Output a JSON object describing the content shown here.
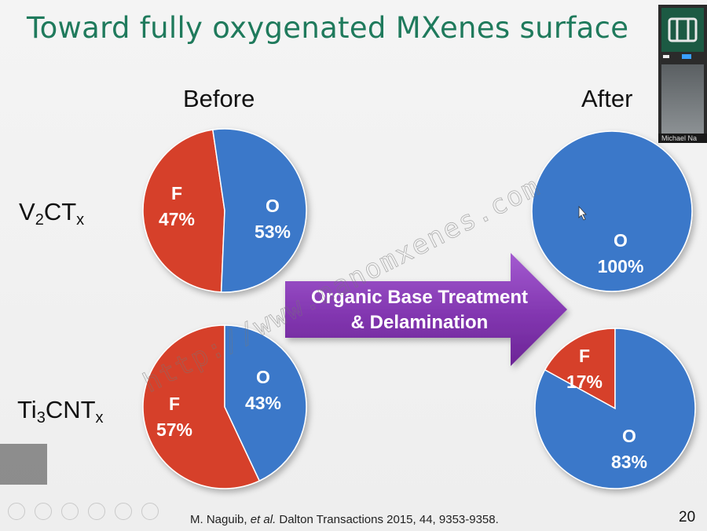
{
  "title": "Toward fully oxygenated MXenes surface",
  "columns": {
    "before": "Before",
    "after": "After"
  },
  "rows": [
    {
      "base": "V",
      "sub1": "2",
      "mid": "CT",
      "sub2": "x"
    },
    {
      "base": "Ti",
      "sub1": "3",
      "mid": "CNT",
      "sub2": "x"
    }
  ],
  "arrow": {
    "line1": "Organic Base Treatment",
    "line2": "& Delamination"
  },
  "citation": {
    "author": "M. Naguib,",
    "etal": "et al.",
    "rest": "Dalton Transactions 2015, 44, 9353-9358."
  },
  "page_number": "20",
  "watermark": "http://www.nanomxenes.com",
  "video": {
    "name": "Michael Na"
  },
  "colors": {
    "F": "#d6402b",
    "O": "#3b78c9",
    "arrow": "#8a3fb3",
    "title": "#1f7a5c"
  },
  "chart_data": [
    {
      "type": "pie",
      "row": "V2CTx",
      "state": "Before",
      "slices": [
        {
          "label": "F",
          "value": 47,
          "text": "47%"
        },
        {
          "label": "O",
          "value": 53,
          "text": "53%"
        }
      ]
    },
    {
      "type": "pie",
      "row": "V2CTx",
      "state": "After",
      "slices": [
        {
          "label": "O",
          "value": 100,
          "text": "100%"
        }
      ]
    },
    {
      "type": "pie",
      "row": "Ti3CNTx",
      "state": "Before",
      "slices": [
        {
          "label": "F",
          "value": 57,
          "text": "57%"
        },
        {
          "label": "O",
          "value": 43,
          "text": "43%"
        }
      ]
    },
    {
      "type": "pie",
      "row": "Ti3CNTx",
      "state": "After",
      "slices": [
        {
          "label": "F",
          "value": 17,
          "text": "17%"
        },
        {
          "label": "O",
          "value": 83,
          "text": "83%"
        }
      ]
    }
  ]
}
